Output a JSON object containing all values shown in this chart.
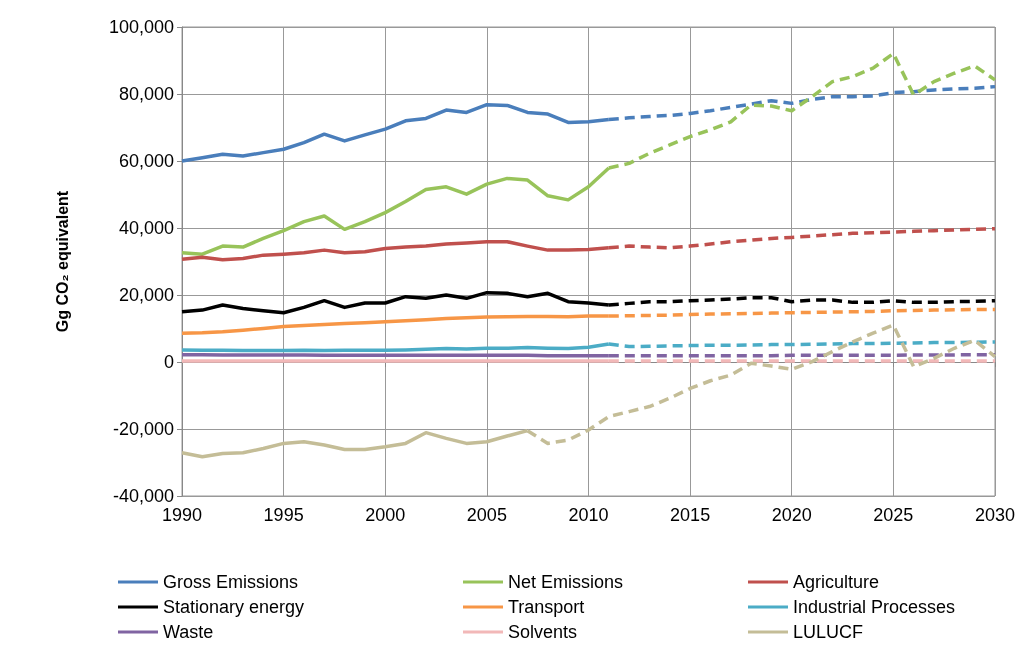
{
  "chart_data": {
    "type": "line",
    "ylabel": "Gg CO₂ equivalent",
    "xlim": [
      1990,
      2030
    ],
    "xticks": [
      1990,
      1995,
      2000,
      2005,
      2010,
      2015,
      2020,
      2025,
      2030
    ],
    "ylim": [
      -40000,
      100000
    ],
    "yticks": [
      {
        "value": -40000,
        "label": "-40,000"
      },
      {
        "value": -20000,
        "label": "-20,000"
      },
      {
        "value": 0,
        "label": "0"
      },
      {
        "value": 20000,
        "label": "20,000"
      },
      {
        "value": 40000,
        "label": "40,000"
      },
      {
        "value": 60000,
        "label": "60,000"
      },
      {
        "value": 80000,
        "label": "80,000"
      },
      {
        "value": 100000,
        "label": "100,000"
      }
    ],
    "grid": true,
    "legend": "bottom",
    "marker": "none",
    "series": [
      {
        "name": "Gross Emissions",
        "color": "#4a7ebb",
        "line_style": "solid",
        "x": [
          1990,
          1991,
          1992,
          1993,
          1994,
          1995,
          1996,
          1997,
          1998,
          1999,
          2000,
          2001,
          2002,
          2003,
          2004,
          2005,
          2006,
          2007,
          2008,
          2009,
          2010,
          2011
        ],
        "values": [
          60000,
          61000,
          62000,
          61500,
          62500,
          63500,
          65500,
          68000,
          66000,
          67800,
          69500,
          72000,
          72700,
          75200,
          74500,
          76800,
          76600,
          74500,
          74000,
          71500,
          71700,
          72400
        ]
      },
      {
        "name": "Net Emissions",
        "color": "#98c35a",
        "line_style": "solid",
        "x": [
          1990,
          1991,
          1992,
          1993,
          1994,
          1995,
          1996,
          1997,
          1998,
          1999,
          2000,
          2001,
          2002,
          2003,
          2004,
          2005,
          2006,
          2007,
          2008,
          2009,
          2010,
          2011
        ],
        "values": [
          32600,
          32200,
          34600,
          34300,
          36900,
          39200,
          41900,
          43600,
          39600,
          41900,
          44600,
          47900,
          51500,
          52300,
          50100,
          53100,
          54800,
          54300,
          49600,
          48400,
          52300,
          57900
        ]
      },
      {
        "name": "Agriculture",
        "color": "#c0504d",
        "line_style": "solid",
        "x": [
          1990,
          1991,
          1992,
          1993,
          1994,
          1995,
          1996,
          1997,
          1998,
          1999,
          2000,
          2001,
          2002,
          2003,
          2004,
          2005,
          2006,
          2007,
          2008,
          2009,
          2010,
          2011
        ],
        "values": [
          30700,
          31300,
          30500,
          30900,
          31900,
          32200,
          32600,
          33400,
          32600,
          32900,
          33900,
          34300,
          34600,
          35200,
          35500,
          35900,
          35900,
          34600,
          33400,
          33400,
          33600,
          34100
        ]
      },
      {
        "name": "Stationary energy",
        "color": "#000000",
        "line_style": "solid",
        "x": [
          1990,
          1991,
          1992,
          1993,
          1994,
          1995,
          1996,
          1997,
          1998,
          1999,
          2000,
          2001,
          2002,
          2003,
          2004,
          2005,
          2006,
          2007,
          2008,
          2009,
          2010,
          2011
        ],
        "values": [
          15000,
          15500,
          17000,
          16000,
          15300,
          14700,
          16300,
          18300,
          16300,
          17600,
          17600,
          19500,
          19000,
          20000,
          19000,
          20700,
          20500,
          19500,
          20500,
          18000,
          17600,
          17000
        ]
      },
      {
        "name": "Transport",
        "color": "#f79646",
        "line_style": "solid",
        "x": [
          1990,
          1991,
          1992,
          1993,
          1994,
          1995,
          1996,
          1997,
          1998,
          1999,
          2000,
          2001,
          2002,
          2003,
          2004,
          2005,
          2006,
          2007,
          2008,
          2009,
          2010,
          2011
        ],
        "values": [
          8600,
          8700,
          9000,
          9500,
          10000,
          10600,
          10900,
          11200,
          11500,
          11700,
          12000,
          12300,
          12600,
          13000,
          13200,
          13400,
          13500,
          13600,
          13600,
          13500,
          13700,
          13700
        ]
      },
      {
        "name": "Industrial Processes",
        "color": "#4bacc6",
        "line_style": "solid",
        "x": [
          1990,
          1991,
          1992,
          1993,
          1994,
          1995,
          1996,
          1997,
          1998,
          1999,
          2000,
          2001,
          2002,
          2003,
          2004,
          2005,
          2006,
          2007,
          2008,
          2009,
          2010,
          2011
        ],
        "values": [
          3600,
          3500,
          3500,
          3400,
          3400,
          3400,
          3500,
          3400,
          3500,
          3500,
          3500,
          3600,
          3800,
          4000,
          3900,
          4100,
          4100,
          4300,
          4100,
          4000,
          4400,
          5400
        ]
      },
      {
        "name": "Waste",
        "color": "#8064a2",
        "line_style": "solid",
        "x": [
          1990,
          1991,
          1992,
          1993,
          1994,
          1995,
          1996,
          1997,
          1998,
          1999,
          2000,
          2001,
          2002,
          2003,
          2004,
          2005,
          2006,
          2007,
          2008,
          2009,
          2010,
          2011
        ],
        "values": [
          2200,
          2200,
          2100,
          2100,
          2100,
          2100,
          2100,
          2000,
          2000,
          2000,
          2000,
          2000,
          2000,
          2000,
          2000,
          2000,
          2000,
          2000,
          1900,
          1900,
          1900,
          1900
        ]
      },
      {
        "name": "Solvents",
        "color": "#f2b8b8",
        "line_style": "solid",
        "x": [
          1990,
          1991,
          1992,
          1993,
          1994,
          1995,
          1996,
          1997,
          1998,
          1999,
          2000,
          2001,
          2002,
          2003,
          2004,
          2005,
          2006,
          2007,
          2008,
          2009,
          2010,
          2011
        ],
        "values": [
          300,
          300,
          300,
          300,
          300,
          300,
          300,
          300,
          300,
          300,
          300,
          300,
          300,
          300,
          300,
          300,
          300,
          300,
          300,
          300,
          300,
          300
        ]
      },
      {
        "name": "LULUCF",
        "color": "#c4bd97",
        "line_style": "solid",
        "x": [
          1990,
          1991,
          1992,
          1993,
          1994,
          1995,
          1996,
          1997,
          1998,
          1999,
          2000,
          2001,
          2002,
          2003,
          2004,
          2005,
          2006,
          2007
        ],
        "values": [
          -27100,
          -28300,
          -27300,
          -27100,
          -25800,
          -24300,
          -23800,
          -24800,
          -26100,
          -26100,
          -25300,
          -24300,
          -21100,
          -22800,
          -24300,
          -23800,
          -22100,
          -20500
        ]
      },
      {
        "color": "#4a7ebb",
        "line_style": "dashed",
        "x": [
          2011,
          2012,
          2013,
          2014,
          2015,
          2016,
          2017,
          2018,
          2019,
          2020,
          2021,
          2022,
          2023,
          2024,
          2025,
          2026,
          2027,
          2028,
          2029,
          2030
        ],
        "values": [
          72400,
          72900,
          73300,
          73600,
          74200,
          75000,
          76000,
          77000,
          78000,
          77200,
          78400,
          79200,
          79200,
          79400,
          80400,
          80700,
          81200,
          81500,
          81700,
          82200
        ]
      },
      {
        "color": "#98c35a",
        "line_style": "dashed",
        "x": [
          2011,
          2012,
          2013,
          2014,
          2015,
          2016,
          2017,
          2018,
          2019,
          2020,
          2021,
          2022,
          2023,
          2024,
          2025,
          2026,
          2027,
          2028,
          2029,
          2030
        ],
        "values": [
          57900,
          59300,
          62300,
          64800,
          67300,
          69300,
          71700,
          76700,
          76400,
          75000,
          79200,
          83700,
          85200,
          87700,
          92100,
          79700,
          83700,
          86200,
          88400,
          84200
        ]
      },
      {
        "color": "#c0504d",
        "line_style": "dashed",
        "x": [
          2011,
          2012,
          2013,
          2014,
          2015,
          2016,
          2017,
          2018,
          2019,
          2020,
          2021,
          2022,
          2023,
          2024,
          2025,
          2026,
          2027,
          2028,
          2029,
          2030
        ],
        "values": [
          34100,
          34600,
          34300,
          34100,
          34600,
          35200,
          35900,
          36400,
          36900,
          37200,
          37600,
          38000,
          38400,
          38600,
          38800,
          39000,
          39200,
          39400,
          39600,
          39800
        ]
      },
      {
        "color": "#000000",
        "line_style": "dashed",
        "x": [
          2011,
          2012,
          2013,
          2014,
          2015,
          2016,
          2017,
          2018,
          2019,
          2020,
          2021,
          2022,
          2023,
          2024,
          2025,
          2026,
          2027,
          2028,
          2029,
          2030
        ],
        "values": [
          17000,
          17500,
          18000,
          18000,
          18300,
          18500,
          18800,
          19200,
          19200,
          18000,
          18500,
          18500,
          17800,
          17800,
          18300,
          17800,
          17800,
          18000,
          18100,
          18300
        ]
      },
      {
        "color": "#f79646",
        "line_style": "dashed",
        "x": [
          2011,
          2012,
          2013,
          2014,
          2015,
          2016,
          2017,
          2018,
          2019,
          2020,
          2021,
          2022,
          2023,
          2024,
          2025,
          2026,
          2027,
          2028,
          2029,
          2030
        ],
        "values": [
          13700,
          13800,
          13900,
          14000,
          14200,
          14300,
          14400,
          14500,
          14600,
          14700,
          14800,
          14900,
          15000,
          15100,
          15300,
          15400,
          15500,
          15600,
          15700,
          15700
        ]
      },
      {
        "color": "#4bacc6",
        "line_style": "dashed",
        "x": [
          2011,
          2012,
          2013,
          2014,
          2015,
          2016,
          2017,
          2018,
          2019,
          2020,
          2021,
          2022,
          2023,
          2024,
          2025,
          2026,
          2027,
          2028,
          2029,
          2030
        ],
        "values": [
          5400,
          4600,
          4700,
          4800,
          4900,
          5000,
          5000,
          5100,
          5200,
          5200,
          5300,
          5400,
          5500,
          5500,
          5600,
          5700,
          5800,
          5800,
          5900,
          6000
        ]
      },
      {
        "color": "#8064a2",
        "line_style": "dashed",
        "x": [
          2011,
          2012,
          2013,
          2014,
          2015,
          2016,
          2017,
          2018,
          2019,
          2020,
          2021,
          2022,
          2023,
          2024,
          2025,
          2026,
          2027,
          2028,
          2029,
          2030
        ],
        "values": [
          1900,
          1900,
          1900,
          1900,
          1900,
          1900,
          1900,
          1900,
          1900,
          2000,
          2000,
          2000,
          2000,
          2000,
          2000,
          2100,
          2100,
          2100,
          2200,
          2200
        ]
      },
      {
        "color": "#f2b8b8",
        "line_style": "dashed",
        "x": [
          2011,
          2012,
          2013,
          2014,
          2015,
          2016,
          2017,
          2018,
          2019,
          2020,
          2021,
          2022,
          2023,
          2024,
          2025,
          2026,
          2027,
          2028,
          2029,
          2030
        ],
        "values": [
          300,
          300,
          300,
          300,
          300,
          300,
          300,
          300,
          300,
          300,
          300,
          300,
          300,
          300,
          300,
          300,
          300,
          300,
          300,
          300
        ]
      },
      {
        "color": "#c4bd97",
        "line_style": "dashed",
        "x": [
          2007,
          2008,
          2009,
          2010,
          2011,
          2012,
          2013,
          2014,
          2015,
          2016,
          2017,
          2018,
          2019,
          2020,
          2021,
          2022,
          2023,
          2024,
          2025,
          2026,
          2027,
          2028,
          2029,
          2030
        ],
        "values": [
          -20500,
          -24300,
          -23300,
          -20300,
          -16300,
          -14800,
          -13300,
          -10800,
          -7900,
          -5600,
          -3900,
          -400,
          -1200,
          -2200,
          100,
          3100,
          6000,
          8600,
          11000,
          -1400,
          1100,
          4100,
          6500,
          1600
        ]
      }
    ]
  }
}
